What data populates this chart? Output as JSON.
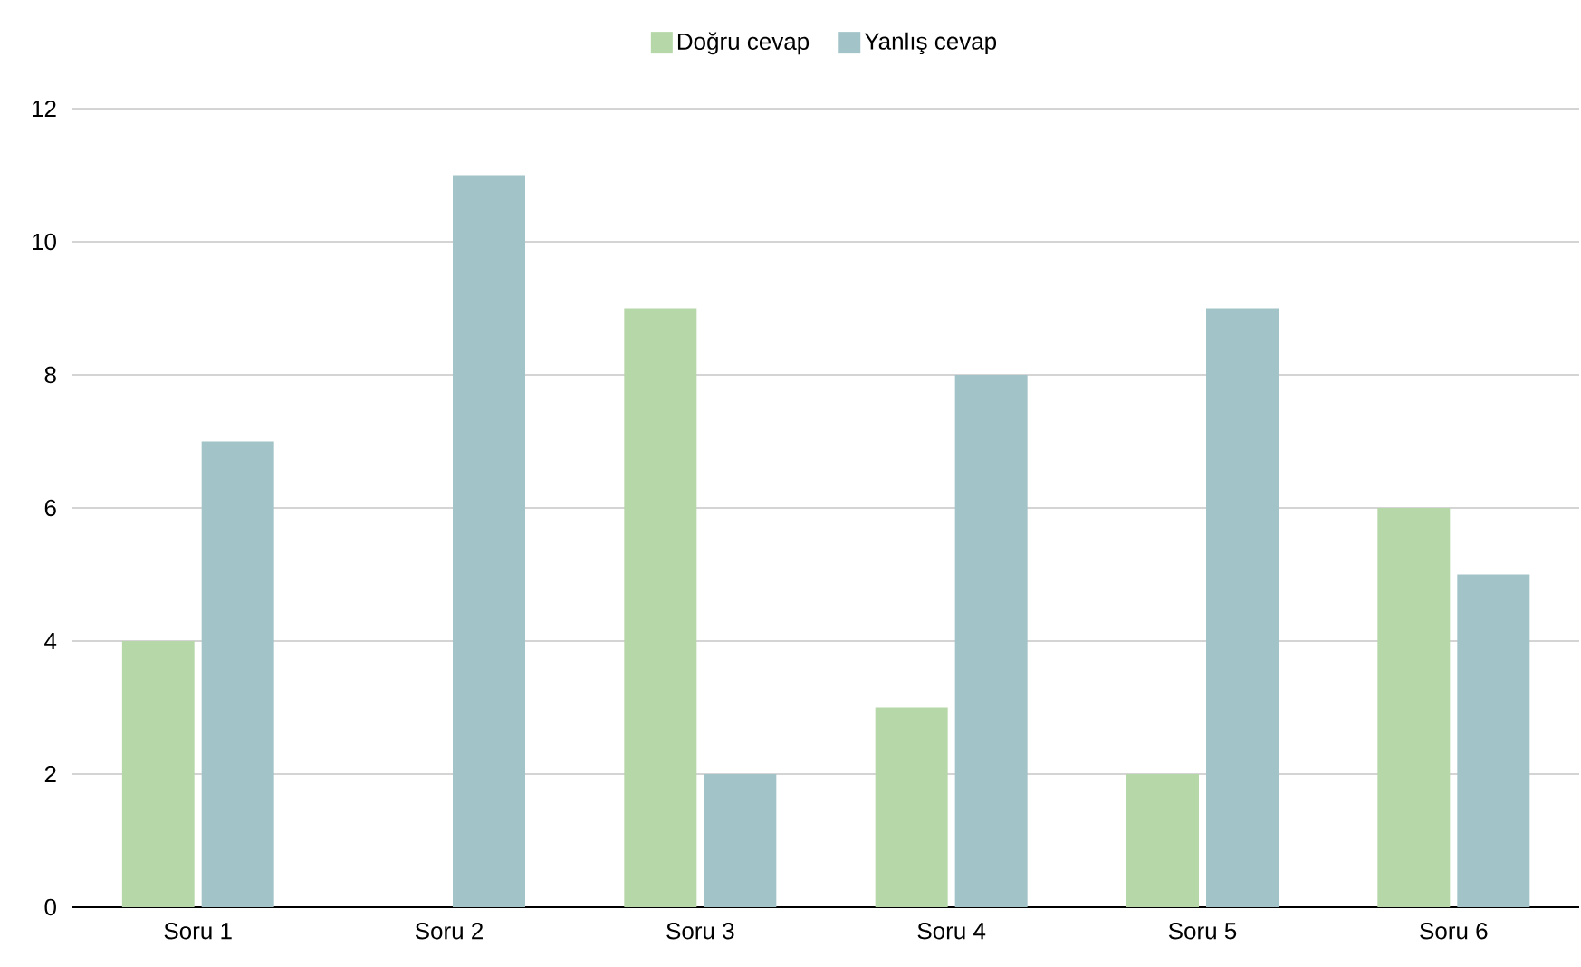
{
  "chart_data": {
    "type": "bar",
    "categories": [
      "Soru 1",
      "Soru 2",
      "Soru 3",
      "Soru 4",
      "Soru 5",
      "Soru 6"
    ],
    "series": [
      {
        "name": "Doğru cevap",
        "color": "#b6d7a8",
        "values": [
          4,
          0,
          9,
          3,
          2,
          6
        ]
      },
      {
        "name": "Yanlış cevap",
        "color": "#a2c4c9",
        "values": [
          7,
          11,
          2,
          8,
          9,
          5
        ]
      }
    ],
    "ylim": [
      0,
      12
    ],
    "yticks": [
      0,
      2,
      4,
      6,
      8,
      10,
      12
    ],
    "grid": "y",
    "legend": "top"
  }
}
